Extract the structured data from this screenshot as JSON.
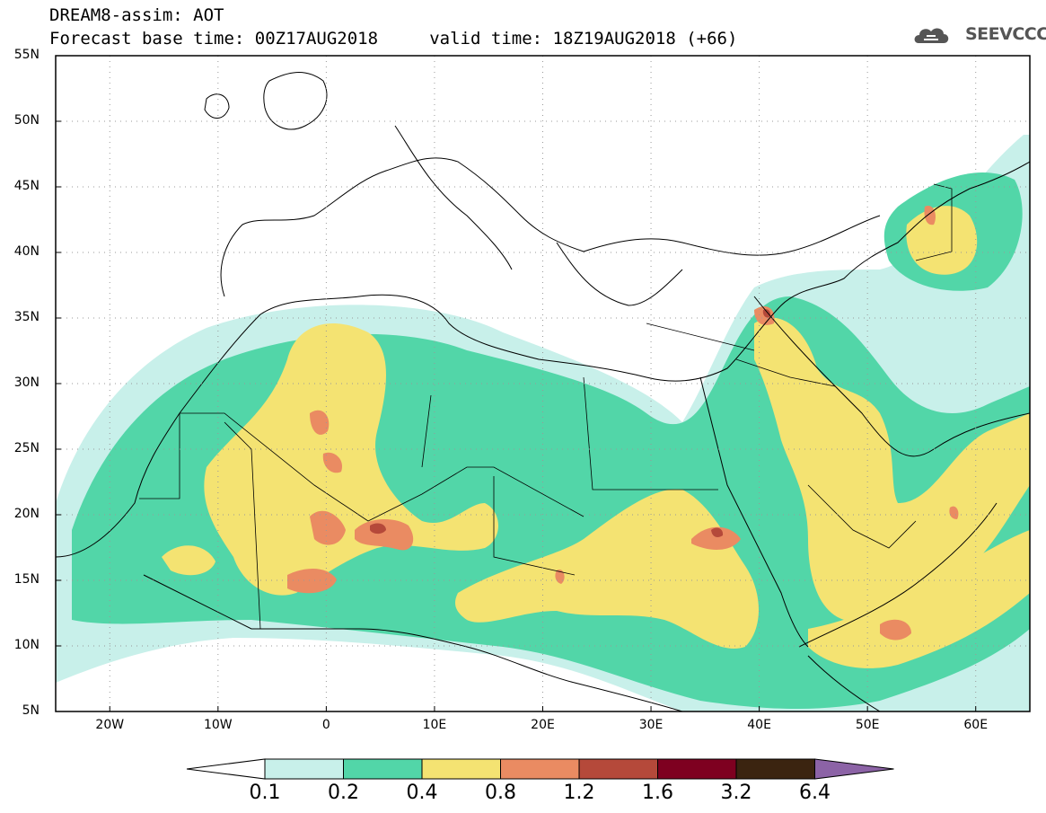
{
  "header": {
    "line1": "DREAM8-assim: AOT",
    "line2": "Forecast base time: 00Z17AUG2018     valid time: 18Z19AUG2018 (+66)",
    "logo_text": "SEEVCCC"
  },
  "map": {
    "lat_labels": [
      "55N",
      "50N",
      "45N",
      "40N",
      "35N",
      "30N",
      "25N",
      "20N",
      "15N",
      "10N",
      "5N"
    ],
    "lon_labels": [
      "20W",
      "10W",
      "0",
      "10E",
      "20E",
      "30E",
      "40E",
      "50E",
      "60E"
    ],
    "lat_range": [
      5,
      55
    ],
    "lon_range": [
      -25,
      65
    ],
    "grid": "dotted"
  },
  "colorbar": {
    "labels": [
      "0.1",
      "0.2",
      "0.4",
      "0.8",
      "1.2",
      "1.6",
      "3.2",
      "6.4"
    ],
    "colors": [
      "#ffffff",
      "#c8f0ea",
      "#52d6a8",
      "#f4e372",
      "#ea8b62",
      "#b5493a",
      "#7e0020",
      "#3b2410",
      "#8c63a6"
    ]
  }
}
